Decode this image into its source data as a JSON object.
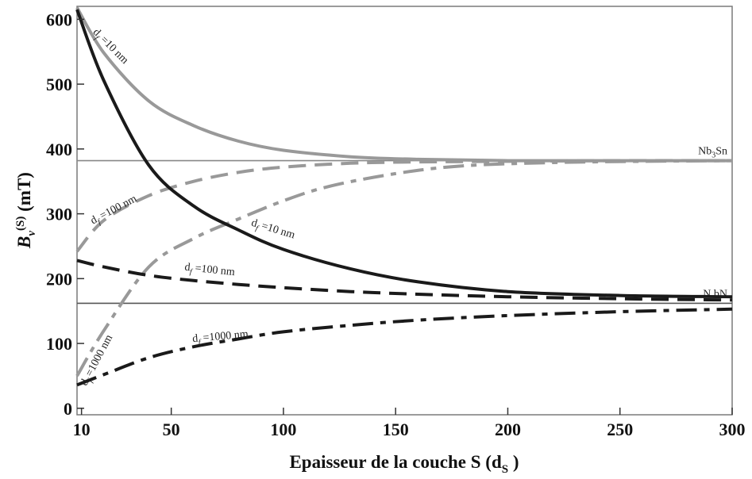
{
  "chart_data": {
    "type": "line",
    "xlabel": "Epaisseur de la couche S (d",
    "xlabel_sub": "S",
    "xlabel_end": " )",
    "ylabel": "B",
    "ylabel_sub": "v",
    "ylabel_sup": "(S)",
    "ylabel_unit": " (mT)",
    "xlim": [
      8,
      300
    ],
    "ylim": [
      -10,
      620
    ],
    "xticks": [
      10,
      50,
      100,
      150,
      200,
      250,
      300
    ],
    "yticks": [
      0,
      100,
      200,
      300,
      400,
      500,
      600
    ],
    "grid": false,
    "reference_lines": [
      {
        "label": "Nb",
        "label_sub": "3",
        "label_end": "Sn",
        "y": 382,
        "color": "#888888"
      },
      {
        "label": "N bN",
        "label_sub": "",
        "label_end": "",
        "y": 162,
        "color": "#555555"
      }
    ],
    "series": [
      {
        "color": "#999999",
        "dash": "solid",
        "width": 4,
        "x": [
          8,
          20,
          40,
          60,
          80,
          100,
          130,
          160,
          200,
          250,
          300
        ],
        "y": [
          618,
          548,
          474,
          436,
          412,
          398,
          388,
          384,
          382,
          382,
          382
        ]
      },
      {
        "color": "#999999",
        "dash": "long",
        "width": 4,
        "x": [
          8,
          20,
          40,
          60,
          80,
          100,
          130,
          160,
          200,
          250,
          300
        ],
        "y": [
          242,
          290,
          328,
          350,
          364,
          372,
          378,
          380,
          381,
          382,
          382
        ]
      },
      {
        "color": "#999999",
        "dash": "dashdot",
        "width": 4,
        "x": [
          8,
          20,
          40,
          60,
          80,
          100,
          120,
          150,
          180,
          220,
          260,
          300
        ],
        "y": [
          50,
          120,
          218,
          262,
          292,
          320,
          342,
          362,
          374,
          379,
          381,
          382
        ]
      },
      {
        "color": "#1a1a1a",
        "dash": "solid",
        "width": 4,
        "x": [
          8,
          20,
          40,
          60,
          80,
          100,
          130,
          160,
          200,
          250,
          300
        ],
        "y": [
          615,
          505,
          375,
          312,
          275,
          245,
          215,
          195,
          180,
          174,
          172
        ]
      },
      {
        "color": "#1a1a1a",
        "dash": "long",
        "width": 4,
        "x": [
          8,
          20,
          40,
          60,
          80,
          100,
          130,
          160,
          200,
          250,
          300
        ],
        "y": [
          228,
          218,
          205,
          197,
          191,
          186,
          180,
          176,
          172,
          169,
          167
        ]
      },
      {
        "color": "#1a1a1a",
        "dash": "dashdot",
        "width": 4,
        "x": [
          8,
          20,
          40,
          60,
          80,
          100,
          130,
          160,
          200,
          250,
          300
        ],
        "y": [
          36,
          52,
          78,
          95,
          107,
          118,
          128,
          136,
          143,
          149,
          153
        ]
      }
    ],
    "annotations": [
      {
        "text": "d",
        "sub": "f",
        "text_end": " =10 nm",
        "x": 22,
        "y": 555,
        "angle": 45
      },
      {
        "text": "d",
        "sub": "f",
        "text_end": " =100 nm",
        "x": 25,
        "y": 302,
        "angle": -28
      },
      {
        "text": "d",
        "sub": "f",
        "text_end": " =10 nm",
        "x": 95,
        "y": 272,
        "angle": 17
      },
      {
        "text": "d",
        "sub": "f",
        "text_end": " =100 nm",
        "x": 67,
        "y": 209,
        "angle": 6
      },
      {
        "text": "d",
        "sub": "f",
        "text_end": " =1000 nm",
        "x": 18,
        "y": 72,
        "angle": -62
      },
      {
        "text": "d",
        "sub": "f",
        "text_end": " =1000 nm",
        "x": 72,
        "y": 106,
        "angle": -5
      }
    ]
  }
}
